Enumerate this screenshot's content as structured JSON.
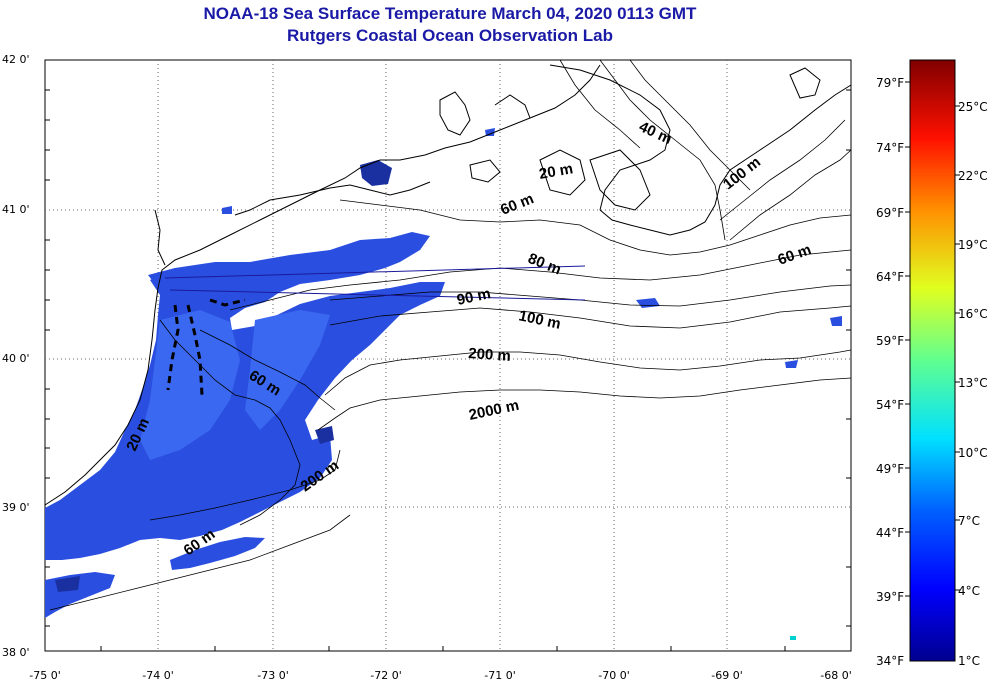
{
  "title": {
    "line1": "NOAA-18 Sea Surface Temperature March 04, 2020 0113 GMT",
    "line2": "Rutgers Coastal Ocean Observation Lab"
  },
  "axes": {
    "lat_labels": [
      "42 0'",
      "41 0'",
      "40 0'",
      "39 0'",
      "38 0'"
    ],
    "lon_labels": [
      "-75 0'",
      "-74 0'",
      "-73 0'",
      "-72 0'",
      "-71 0'",
      "-70 0'",
      "-69 0'",
      "-68 0'"
    ],
    "lat_range": [
      38,
      42
    ],
    "lon_range": [
      -75,
      -68
    ],
    "grid": "dotted"
  },
  "isobath_labels": [
    "20 m",
    "40 m",
    "100 m",
    "60 m",
    "80 m",
    "90 m",
    "100 m",
    "200 m",
    "2000 m",
    "60 m",
    "20 m",
    "200 m",
    "60 m"
  ],
  "colorbar": {
    "fahrenheit": [
      "79°F",
      "74°F",
      "69°F",
      "64°F",
      "59°F",
      "54°F",
      "49°F",
      "44°F",
      "39°F",
      "34°F"
    ],
    "celsius": [
      "25°C",
      "22°C",
      "19°C",
      "16°C",
      "13°C",
      "10°C",
      "7°C",
      "4°C",
      "1°C"
    ],
    "colors": [
      "#00008f",
      "#0000ff",
      "#0080ff",
      "#00ffff",
      "#80ff80",
      "#ffff00",
      "#ff8000",
      "#ff0000",
      "#800000"
    ]
  }
}
